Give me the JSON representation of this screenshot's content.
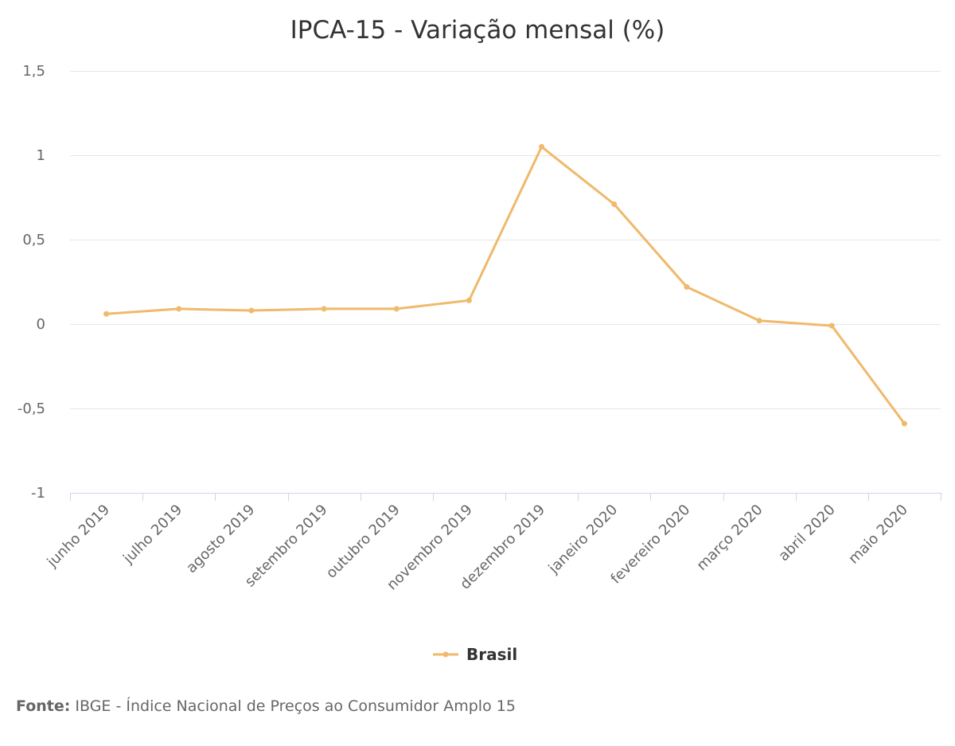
{
  "chart_data": {
    "type": "line",
    "title": "IPCA-15 - Variação mensal (%)",
    "xlabel": "",
    "ylabel": "",
    "categories": [
      "junho 2019",
      "julho 2019",
      "agosto 2019",
      "setembro 2019",
      "outubro 2019",
      "novembro 2019",
      "dezembro 2019",
      "janeiro 2020",
      "fevereiro 2020",
      "março 2020",
      "abril 2020",
      "maio 2020"
    ],
    "series": [
      {
        "name": "Brasil",
        "color": "#f0b96b",
        "values": [
          0.06,
          0.09,
          0.08,
          0.09,
          0.09,
          0.14,
          1.05,
          0.71,
          0.22,
          0.02,
          -0.01,
          -0.59
        ]
      }
    ],
    "ylim": [
      -1,
      1.5
    ],
    "yticks": [
      1.5,
      1,
      0.5,
      0,
      -0.5,
      -1
    ],
    "ytick_labels": [
      "1,5",
      "1",
      "0,5",
      "0",
      "-0,5",
      "-1"
    ],
    "grid": true,
    "legend_position": "bottom-center"
  },
  "source": {
    "prefix": "Fonte:",
    "text": " IBGE - Índice Nacional de Preços ao Consumidor Amplo 15"
  }
}
